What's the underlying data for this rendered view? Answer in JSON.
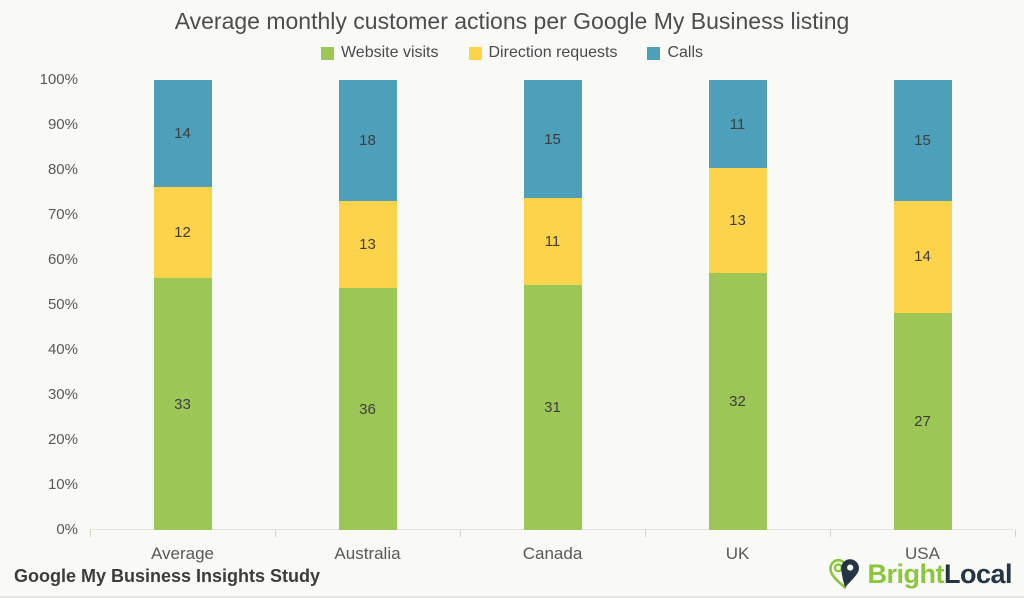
{
  "title": "Average monthly customer actions per Google My Business listing",
  "legend": [
    {
      "label": "Website visits",
      "color": "#9cc655"
    },
    {
      "label": "Direction requests",
      "color": "#fdd34c"
    },
    {
      "label": "Calls",
      "color": "#4d9fba"
    }
  ],
  "chart_data": {
    "type": "bar",
    "stacked": true,
    "normalized": "percent",
    "title": "Average monthly customer actions per Google My Business listing",
    "categories": [
      "Average",
      "Australia",
      "Canada",
      "UK",
      "USA"
    ],
    "series": [
      {
        "name": "Website visits",
        "color": "#9cc655",
        "values": [
          33,
          36,
          31,
          32,
          27
        ]
      },
      {
        "name": "Direction requests",
        "color": "#fdd34c",
        "values": [
          12,
          13,
          11,
          13,
          14
        ]
      },
      {
        "name": "Calls",
        "color": "#4d9fba",
        "values": [
          14,
          18,
          15,
          11,
          15
        ]
      }
    ],
    "yticks": [
      "0%",
      "10%",
      "20%",
      "30%",
      "40%",
      "50%",
      "60%",
      "70%",
      "80%",
      "90%",
      "100%"
    ],
    "ylim": [
      0,
      100
    ],
    "grid": false,
    "legend_position": "top",
    "value_labels": "inside-segments"
  },
  "footer": {
    "source": "Google My Business Insights Study",
    "logo": {
      "bright": "Bright",
      "local": "Local",
      "green": "#8cc63e",
      "navy": "#253544"
    }
  }
}
